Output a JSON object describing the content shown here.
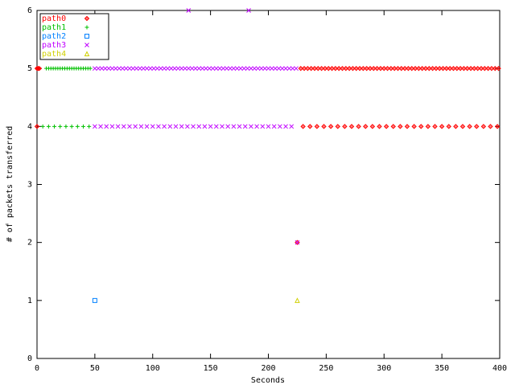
{
  "chart_data": {
    "type": "scatter",
    "xlabel": "Seconds",
    "ylabel": "# of packets transferred",
    "xlim": [
      0,
      400
    ],
    "xticks": [
      0,
      50,
      100,
      150,
      200,
      250,
      300,
      350,
      400
    ],
    "ylim": [
      0,
      6
    ],
    "yticks": [
      0,
      1,
      2,
      3,
      4,
      5,
      6
    ],
    "legend": "upper left",
    "series": [
      {
        "name": "path0",
        "color": "#ff0000",
        "marker": "diamond",
        "x": [
          0,
          1,
          2,
          228,
          231,
          234,
          237,
          240,
          243,
          246,
          249,
          252,
          255,
          258,
          261,
          264,
          267,
          270,
          273,
          276,
          279,
          282,
          285,
          288,
          291,
          294,
          297,
          300,
          303,
          306,
          309,
          312,
          315,
          318,
          321,
          324,
          327,
          330,
          333,
          336,
          339,
          342,
          345,
          348,
          351,
          354,
          357,
          360,
          363,
          366,
          369,
          372,
          375,
          378,
          381,
          384,
          387,
          390,
          393,
          396,
          399,
          0,
          230,
          236,
          242,
          248,
          254,
          260,
          266,
          272,
          278,
          284,
          290,
          296,
          302,
          308,
          314,
          320,
          326,
          332,
          338,
          344,
          350,
          356,
          362,
          368,
          374,
          380,
          386,
          392,
          398,
          225
        ],
        "values": [
          5,
          5,
          5,
          5,
          5,
          5,
          5,
          5,
          5,
          5,
          5,
          5,
          5,
          5,
          5,
          5,
          5,
          5,
          5,
          5,
          5,
          5,
          5,
          5,
          5,
          5,
          5,
          5,
          5,
          5,
          5,
          5,
          5,
          5,
          5,
          5,
          5,
          5,
          5,
          5,
          5,
          5,
          5,
          5,
          5,
          5,
          5,
          5,
          5,
          5,
          5,
          5,
          5,
          5,
          5,
          5,
          5,
          5,
          5,
          5,
          5,
          4,
          4,
          4,
          4,
          4,
          4,
          4,
          4,
          4,
          4,
          4,
          4,
          4,
          4,
          4,
          4,
          4,
          4,
          4,
          4,
          4,
          4,
          4,
          4,
          4,
          4,
          4,
          4,
          4,
          4,
          2
        ]
      },
      {
        "name": "path1",
        "color": "#00c000",
        "marker": "plus",
        "x": [
          8,
          10,
          12,
          14,
          16,
          18,
          20,
          22,
          24,
          26,
          28,
          30,
          32,
          34,
          36,
          38,
          40,
          42,
          44,
          46,
          5,
          10,
          15,
          20,
          25,
          30,
          35,
          40,
          45
        ],
        "values": [
          5,
          5,
          5,
          5,
          5,
          5,
          5,
          5,
          5,
          5,
          5,
          5,
          5,
          5,
          5,
          5,
          5,
          5,
          5,
          5,
          4,
          4,
          4,
          4,
          4,
          4,
          4,
          4,
          4
        ]
      },
      {
        "name": "path2",
        "color": "#0080ff",
        "marker": "square",
        "x": [
          50
        ],
        "values": [
          1
        ]
      },
      {
        "name": "path3",
        "color": "#c000ff",
        "marker": "cross",
        "x": [
          50,
          53,
          56,
          59,
          62,
          65,
          68,
          71,
          74,
          77,
          80,
          83,
          86,
          89,
          92,
          95,
          98,
          101,
          104,
          107,
          110,
          113,
          116,
          119,
          122,
          125,
          128,
          131,
          134,
          137,
          140,
          143,
          146,
          149,
          152,
          155,
          158,
          161,
          164,
          167,
          170,
          173,
          176,
          179,
          182,
          185,
          188,
          191,
          194,
          197,
          200,
          203,
          206,
          209,
          212,
          215,
          218,
          221,
          224,
          50,
          55,
          60,
          65,
          70,
          75,
          80,
          85,
          90,
          95,
          100,
          105,
          110,
          115,
          120,
          125,
          130,
          135,
          140,
          145,
          150,
          155,
          160,
          165,
          170,
          175,
          180,
          185,
          190,
          195,
          200,
          205,
          210,
          215,
          220,
          131,
          183,
          225
        ],
        "values": [
          5,
          5,
          5,
          5,
          5,
          5,
          5,
          5,
          5,
          5,
          5,
          5,
          5,
          5,
          5,
          5,
          5,
          5,
          5,
          5,
          5,
          5,
          5,
          5,
          5,
          5,
          5,
          5,
          5,
          5,
          5,
          5,
          5,
          5,
          5,
          5,
          5,
          5,
          5,
          5,
          5,
          5,
          5,
          5,
          5,
          5,
          5,
          5,
          5,
          5,
          5,
          5,
          5,
          5,
          5,
          5,
          5,
          5,
          5,
          4,
          4,
          4,
          4,
          4,
          4,
          4,
          4,
          4,
          4,
          4,
          4,
          4,
          4,
          4,
          4,
          4,
          4,
          4,
          4,
          4,
          4,
          4,
          4,
          4,
          4,
          4,
          4,
          4,
          4,
          4,
          4,
          4,
          4,
          4,
          6,
          6,
          2
        ]
      },
      {
        "name": "path4",
        "color": "#d0d000",
        "marker": "triangle",
        "x": [
          225
        ],
        "values": [
          1
        ]
      }
    ]
  }
}
